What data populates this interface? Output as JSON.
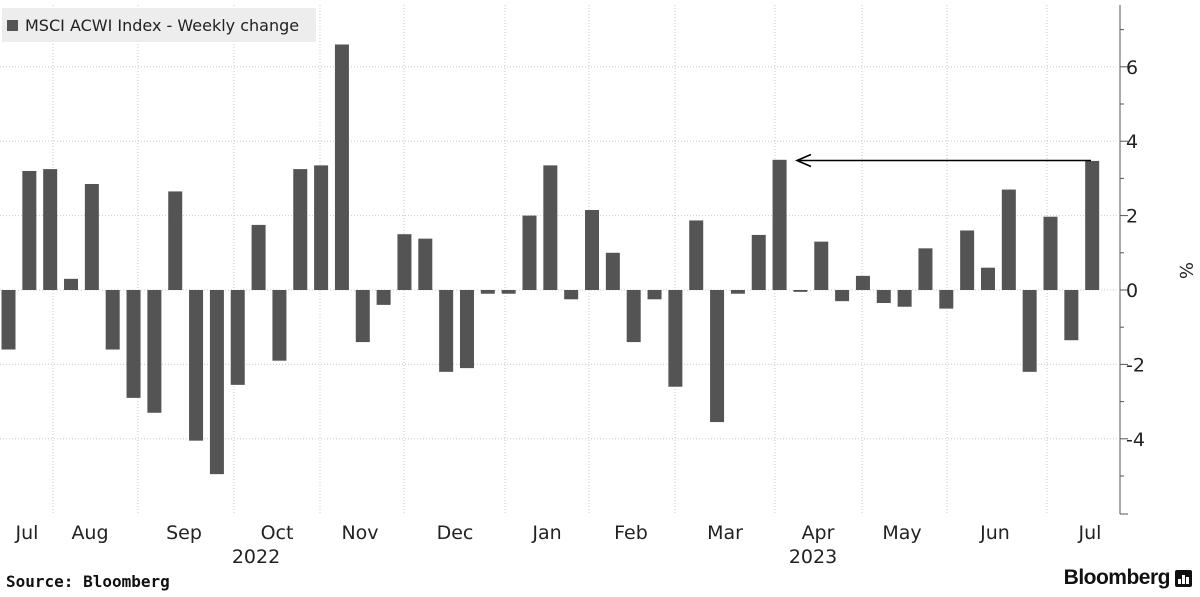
{
  "chart_data": {
    "type": "bar",
    "legend": "MSCI ACWI Index - Weekly change",
    "ylabel": "%",
    "ylim": [
      -6,
      7.6
    ],
    "yticks": [
      6,
      4,
      2,
      0,
      -2,
      -4
    ],
    "ytick_labels": [
      "6",
      "4",
      "2",
      "0",
      "-2",
      "-4"
    ],
    "month_labels": [
      "Jul",
      "Aug",
      "Sep",
      "Oct",
      "Nov",
      "Dec",
      "Jan",
      "Feb",
      "Mar",
      "Apr",
      "May",
      "Jun",
      "Jul"
    ],
    "year_labels": [
      "2022",
      "2023"
    ],
    "values": [
      -1.6,
      3.2,
      3.25,
      0.3,
      2.85,
      -1.6,
      -2.9,
      -3.3,
      2.65,
      -4.05,
      -4.95,
      -2.55,
      1.75,
      -1.9,
      3.25,
      3.35,
      6.6,
      -1.4,
      -0.4,
      1.5,
      1.38,
      -2.2,
      -2.1,
      -0.1,
      -0.1,
      2.0,
      3.35,
      -0.25,
      2.15,
      1.0,
      -1.4,
      -0.25,
      -2.6,
      1.87,
      -3.55,
      -0.1,
      1.48,
      3.5,
      -0.05,
      1.3,
      -0.3,
      0.38,
      -0.35,
      -0.45,
      1.12,
      -0.5,
      1.6,
      0.6,
      2.7,
      -2.2,
      1.97,
      -1.35,
      3.47
    ],
    "annotation": "arrow from the last bar level back to the March 2023 bar",
    "bar_color": "#545454"
  },
  "footer": {
    "source": "Source: Bloomberg",
    "brand": "Bloomberg"
  }
}
